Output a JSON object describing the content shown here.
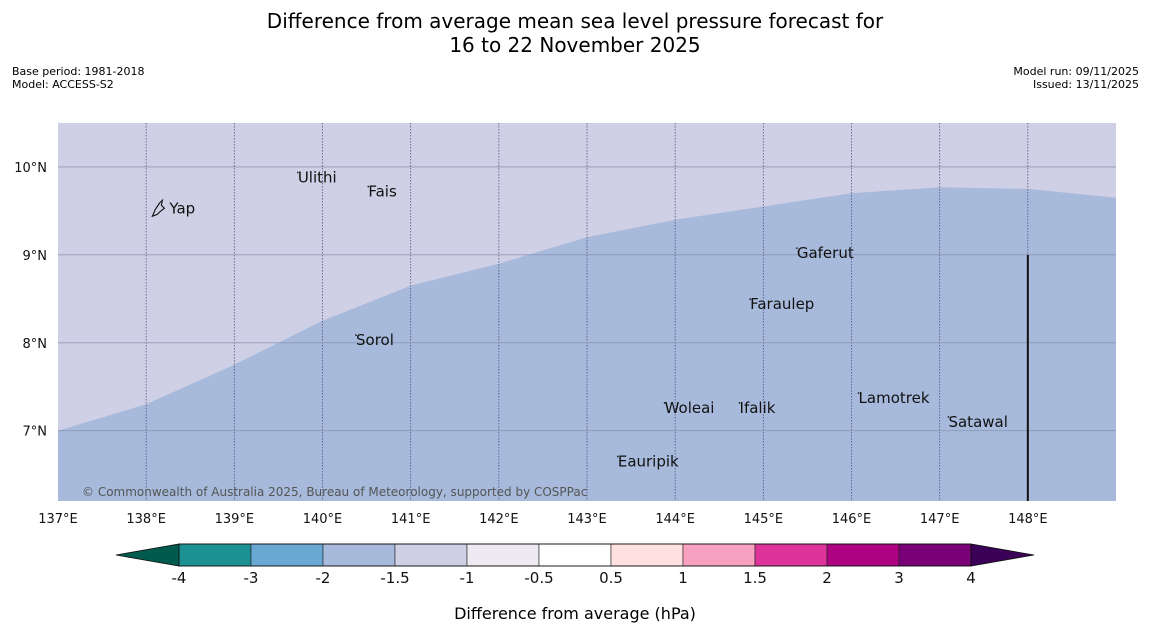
{
  "header": {
    "title_line1": "Difference from average mean sea level pressure forecast for",
    "title_line2": "16 to 22 November 2025",
    "base_period": "Base period: 1981-2018",
    "model": "Model: ACCESS-S2",
    "model_run": "Model run: 09/11/2025",
    "issued": "Issued: 13/11/2025"
  },
  "map": {
    "lon_range": [
      137,
      149
    ],
    "lat_range": [
      6.2,
      10.5
    ],
    "lon_ticks": [
      137,
      138,
      139,
      140,
      141,
      142,
      143,
      144,
      145,
      146,
      147,
      148
    ],
    "lon_tick_labels": [
      "137°E",
      "138°E",
      "139°E",
      "140°E",
      "141°E",
      "142°E",
      "143°E",
      "144°E",
      "145°E",
      "146°E",
      "147°E",
      "148°E"
    ],
    "lat_ticks": [
      10,
      9,
      8,
      7
    ],
    "lat_tick_labels": [
      "10°N",
      "9°N",
      "8°N",
      "7°N"
    ],
    "background_color": "#cfcfe5",
    "field_color": "#a7badb",
    "boundary": [
      {
        "lon": 137.0,
        "lat": 7.0
      },
      {
        "lon": 138.0,
        "lat": 7.3
      },
      {
        "lon": 139.0,
        "lat": 7.75
      },
      {
        "lon": 140.0,
        "lat": 8.25
      },
      {
        "lon": 140.5,
        "lat": 8.45
      },
      {
        "lon": 141.0,
        "lat": 8.65
      },
      {
        "lon": 142.0,
        "lat": 8.9
      },
      {
        "lon": 143.0,
        "lat": 9.2
      },
      {
        "lon": 144.0,
        "lat": 9.4
      },
      {
        "lon": 145.0,
        "lat": 9.55
      },
      {
        "lon": 146.0,
        "lat": 9.7
      },
      {
        "lon": 147.0,
        "lat": 9.77
      },
      {
        "lon": 148.0,
        "lat": 9.75
      },
      {
        "lon": 149.0,
        "lat": 9.65
      }
    ],
    "vertical_line": {
      "lon": 148.0,
      "lat_from": 9.0,
      "lat_to": 6.2
    },
    "places": [
      {
        "name": "Yap",
        "lon": 138.15,
        "lat": 9.53,
        "marker": "island"
      },
      {
        "name": "Ulithi",
        "lon": 139.72,
        "lat": 9.88
      },
      {
        "name": "Fais",
        "lon": 140.52,
        "lat": 9.72
      },
      {
        "name": "Gaferut",
        "lon": 145.38,
        "lat": 9.02
      },
      {
        "name": "Faraulep",
        "lon": 144.85,
        "lat": 8.44
      },
      {
        "name": "Sorol",
        "lon": 140.38,
        "lat": 8.03
      },
      {
        "name": "Lamotrek",
        "lon": 146.08,
        "lat": 7.37
      },
      {
        "name": "Satawal",
        "lon": 147.1,
        "lat": 7.1
      },
      {
        "name": "Woleai",
        "lon": 143.88,
        "lat": 7.26
      },
      {
        "name": "Ifalik",
        "lon": 144.73,
        "lat": 7.26
      },
      {
        "name": "Eauripik",
        "lon": 143.35,
        "lat": 6.65
      }
    ],
    "copyright": "© Commonwealth of Australia 2025, Bureau of Meteorology, supported by COSPPac"
  },
  "colorbar": {
    "label": "Difference from average (hPa)",
    "tick_labels": [
      "-4",
      "-3",
      "-2",
      "-1.5",
      "-1",
      "-0.5",
      "0.5",
      "1",
      "1.5",
      "2",
      "3",
      "4"
    ],
    "under_color": "#005b4e",
    "over_color": "#3b0057",
    "colors": [
      "#1b9193",
      "#68a8d2",
      "#a7badb",
      "#cfcfe5",
      "#efeaf1",
      "#ffffff",
      "#fde0df",
      "#f8a0bf",
      "#dd339a",
      "#ae0283",
      "#790077"
    ]
  }
}
